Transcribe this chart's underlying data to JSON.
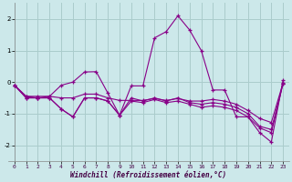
{
  "xlabel": "Windchill (Refroidissement éolien,°C)",
  "background_color": "#cce8ea",
  "grid_color": "#aacccc",
  "line_color": "#880088",
  "x": [
    0,
    1,
    2,
    3,
    4,
    5,
    6,
    7,
    8,
    9,
    10,
    11,
    12,
    13,
    14,
    15,
    16,
    17,
    18,
    19,
    20,
    21,
    22,
    23
  ],
  "series": [
    [
      -0.1,
      -0.45,
      -0.5,
      -0.45,
      -0.1,
      0.0,
      0.32,
      0.33,
      -0.35,
      -1.05,
      -0.12,
      -0.12,
      1.4,
      1.6,
      2.1,
      1.65,
      1.0,
      -0.25,
      -0.25,
      -1.1,
      -1.1,
      -1.6,
      -1.9,
      0.05
    ],
    [
      -0.1,
      -0.5,
      -0.5,
      -0.5,
      -0.85,
      -1.1,
      -0.5,
      -0.5,
      -0.6,
      -1.05,
      -0.5,
      -0.6,
      -0.5,
      -0.6,
      -0.5,
      -0.65,
      -0.7,
      -0.65,
      -0.7,
      -0.8,
      -1.0,
      -1.4,
      -1.5,
      -0.05
    ],
    [
      -0.1,
      -0.5,
      -0.5,
      -0.5,
      -0.85,
      -1.1,
      -0.5,
      -0.5,
      -0.6,
      -1.05,
      -0.6,
      -0.65,
      -0.55,
      -0.65,
      -0.6,
      -0.7,
      -0.8,
      -0.75,
      -0.8,
      -0.9,
      -1.1,
      -1.45,
      -1.6,
      -0.05
    ],
    [
      -0.1,
      -0.45,
      -0.45,
      -0.45,
      -0.5,
      -0.5,
      -0.38,
      -0.38,
      -0.5,
      -0.58,
      -0.58,
      -0.58,
      -0.52,
      -0.58,
      -0.52,
      -0.6,
      -0.6,
      -0.55,
      -0.6,
      -0.7,
      -0.9,
      -1.15,
      -1.28,
      -0.03
    ]
  ],
  "xlim": [
    -0.5,
    23.5
  ],
  "ylim": [
    -2.5,
    2.5
  ],
  "yticks": [
    -2,
    -1,
    0,
    1,
    2
  ],
  "xticks": [
    0,
    1,
    2,
    3,
    4,
    5,
    6,
    7,
    8,
    9,
    10,
    11,
    12,
    13,
    14,
    15,
    16,
    17,
    18,
    19,
    20,
    21,
    22,
    23
  ]
}
